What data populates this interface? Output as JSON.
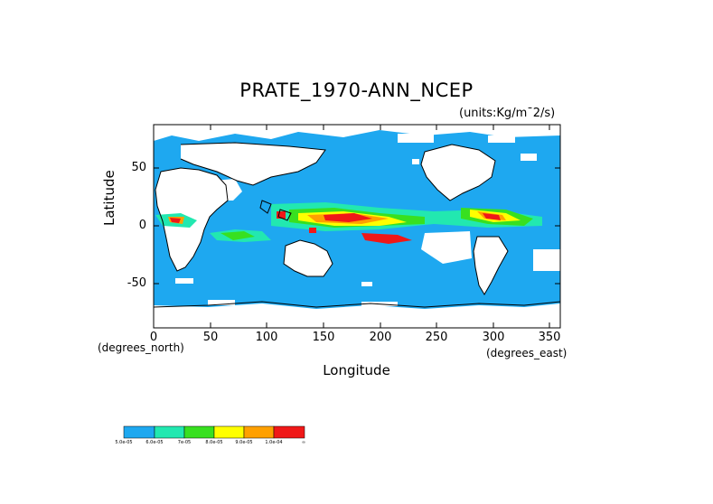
{
  "map": {
    "title": "PRATE_1970-ANN_NCEP",
    "units": "(units:Kg/m¯2/s)",
    "ylabel": "Latitude",
    "xlabel": "Longitude",
    "x_note": "(degrees_north)",
    "x_note2": "(degrees_east)",
    "yticks": [
      "50",
      "0",
      "-50"
    ],
    "xticks": [
      "0",
      "50",
      "100",
      "150",
      "200",
      "250",
      "300",
      "350"
    ]
  },
  "colors": {
    "ocean": "#1ea8f0",
    "c2": "#22e8b0",
    "c3": "#38e020",
    "c4": "#ffff00",
    "c5": "#ffa000",
    "c6": "#f01818"
  },
  "colorbar": {
    "labels": [
      "5.0e-05",
      "6.0e-05",
      "7e-05",
      "8.0e-05",
      "9.0e-05",
      "1.0e-04",
      "∞"
    ]
  }
}
